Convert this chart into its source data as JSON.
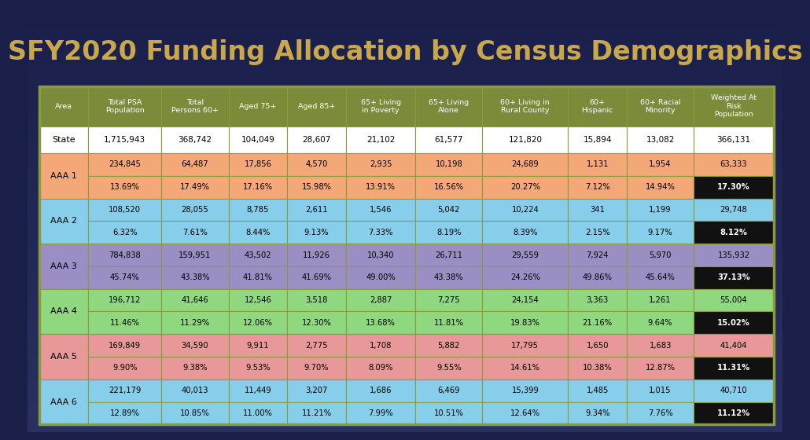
{
  "title": "SFY2020 Funding Allocation by Census Demographics",
  "title_color": "#C8A84B",
  "bg_color_top": "#2a3060",
  "bg_color_bottom": "#1a1f4a",
  "table_border_color": "#8B9B3A",
  "header_bg": "#7A8C3A",
  "header_text_color": "white",
  "state_row_bg": "white",
  "last_col_number_bg_suffix": "same_as_row",
  "last_col_pct_bg": "#000000",
  "last_col_pct_text": "white",
  "row_colors": {
    "AAA 1": "#F4A878",
    "AAA 2": "#87CEEB",
    "AAA 3": "#9B8EC4",
    "AAA 4": "#90D880",
    "AAA 5": "#E89898",
    "AAA 6": "#87CEEB"
  },
  "columns": [
    "Area",
    "Total PSA\nPopulation",
    "Total\nPersons 60+",
    "Aged 75+",
    "Aged 85+",
    "65+ Living\nin Poverty",
    "65+ Living\nAlone",
    "60+ Living in\nRural County",
    "60+\nHispanic",
    "60+ Racial\nMinority",
    "Weighted At\nRisk\nPopulation"
  ],
  "rows": [
    {
      "area": "State",
      "type": "state",
      "values": [
        "1,715,943",
        "368,742",
        "104,049",
        "28,607",
        "21,102",
        "61,577",
        "121,820",
        "15,894",
        "13,082",
        "366,131"
      ]
    },
    {
      "area": "AAA 1",
      "type": "aaa",
      "color_key": "AAA 1",
      "row1": [
        "234,845",
        "64,487",
        "17,856",
        "4,570",
        "2,935",
        "10,198",
        "24,689",
        "1,131",
        "1,954",
        "63,333"
      ],
      "row2": [
        "13.69%",
        "17.49%",
        "17.16%",
        "15.98%",
        "13.91%",
        "16.56%",
        "20.27%",
        "7.12%",
        "14.94%",
        "17.30%"
      ]
    },
    {
      "area": "AAA 2",
      "type": "aaa",
      "color_key": "AAA 2",
      "row1": [
        "108,520",
        "28,055",
        "8,785",
        "2,611",
        "1,546",
        "5,042",
        "10,224",
        "341",
        "1,199",
        "29,748"
      ],
      "row2": [
        "6.32%",
        "7.61%",
        "8.44%",
        "9.13%",
        "7.33%",
        "8.19%",
        "8.39%",
        "2.15%",
        "9.17%",
        "8.12%"
      ]
    },
    {
      "area": "AAA 3",
      "type": "aaa",
      "color_key": "AAA 3",
      "row1": [
        "784,838",
        "159,951",
        "43,502",
        "11,926",
        "10,340",
        "26,711",
        "29,559",
        "7,924",
        "5,970",
        "135,932"
      ],
      "row2": [
        "45.74%",
        "43.38%",
        "41.81%",
        "41.69%",
        "49.00%",
        "43.38%",
        "24.26%",
        "49.86%",
        "45.64%",
        "37.13%"
      ]
    },
    {
      "area": "AAA 4",
      "type": "aaa",
      "color_key": "AAA 4",
      "row1": [
        "196,712",
        "41,646",
        "12,546",
        "3,518",
        "2,887",
        "7,275",
        "24,154",
        "3,363",
        "1,261",
        "55,004"
      ],
      "row2": [
        "11.46%",
        "11.29%",
        "12.06%",
        "12.30%",
        "13.68%",
        "11.81%",
        "19.83%",
        "21.16%",
        "9.64%",
        "15.02%"
      ]
    },
    {
      "area": "AAA 5",
      "type": "aaa",
      "color_key": "AAA 5",
      "row1": [
        "169,849",
        "34,590",
        "9,911",
        "2,775",
        "1,708",
        "5,882",
        "17,795",
        "1,650",
        "1,683",
        "41,404"
      ],
      "row2": [
        "9.90%",
        "9.38%",
        "9.53%",
        "9.70%",
        "8.09%",
        "9.55%",
        "14.61%",
        "10.38%",
        "12.87%",
        "11.31%"
      ]
    },
    {
      "area": "AAA 6",
      "type": "aaa",
      "color_key": "AAA 6",
      "row1": [
        "221,179",
        "40,013",
        "11,449",
        "3,207",
        "1,686",
        "6,469",
        "15,399",
        "1,485",
        "1,015",
        "40,710"
      ],
      "row2": [
        "12.89%",
        "10.85%",
        "11.00%",
        "11.21%",
        "7.99%",
        "10.51%",
        "12.64%",
        "9.34%",
        "7.76%",
        "11.12%"
      ]
    }
  ]
}
